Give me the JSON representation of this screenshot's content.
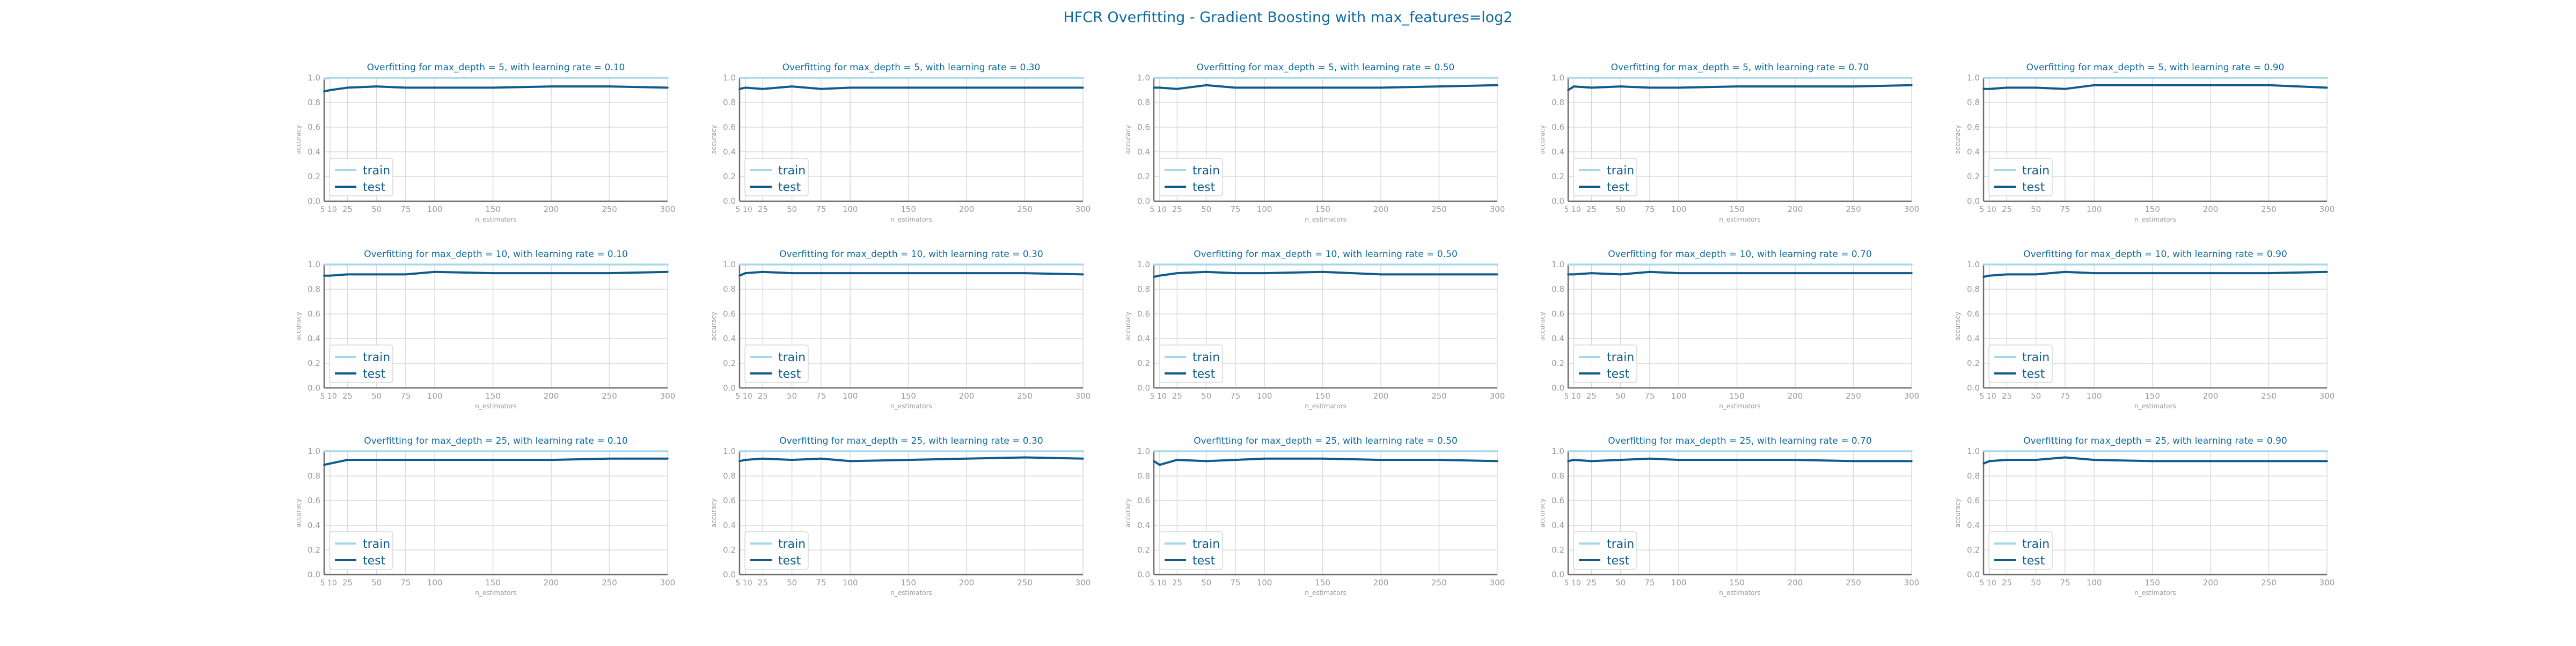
{
  "figure": {
    "title": "HFCR Overfitting - Gradient Boosting with max_features=log2",
    "colors": {
      "train": "#a8d8e6",
      "test": "#0f5c8c",
      "title": "#0f6aa0",
      "axis_text": "#9a9a9a",
      "grid": "#dadada",
      "spine": "#6e6e6e"
    }
  },
  "chart_data": [
    {
      "type": "line",
      "title": "Overfitting for max_depth = 5, with learning rate = 0.10",
      "xlabel": "n_estimators",
      "ylabel": "accuracy",
      "ylim": [
        0,
        1
      ],
      "xlim": [
        5,
        300
      ],
      "grid": true,
      "legend": "lower-left",
      "x": [
        5,
        10,
        25,
        50,
        75,
        100,
        150,
        200,
        250,
        300
      ],
      "xticks": [
        "5",
        "10",
        "25",
        "50",
        "75",
        "100",
        "150",
        "200",
        "250",
        "300"
      ],
      "yticks": [
        "0.0",
        "0.2",
        "0.4",
        "0.6",
        "0.8",
        "1.0"
      ],
      "series": [
        {
          "name": "train",
          "values": [
            0.99,
            1.0,
            1.0,
            1.0,
            1.0,
            1.0,
            1.0,
            1.0,
            1.0,
            1.0
          ]
        },
        {
          "name": "test",
          "values": [
            0.89,
            0.9,
            0.92,
            0.93,
            0.92,
            0.92,
            0.92,
            0.93,
            0.93,
            0.92
          ]
        }
      ]
    },
    {
      "type": "line",
      "title": "Overfitting for max_depth = 5, with learning rate = 0.30",
      "xlabel": "n_estimators",
      "ylabel": "accuracy",
      "ylim": [
        0,
        1
      ],
      "xlim": [
        5,
        300
      ],
      "grid": true,
      "legend": "lower-left",
      "x": [
        5,
        10,
        25,
        50,
        75,
        100,
        150,
        200,
        250,
        300
      ],
      "xticks": [
        "5",
        "10",
        "25",
        "50",
        "75",
        "100",
        "150",
        "200",
        "250",
        "300"
      ],
      "yticks": [
        "0.0",
        "0.2",
        "0.4",
        "0.6",
        "0.8",
        "1.0"
      ],
      "series": [
        {
          "name": "train",
          "values": [
            1.0,
            1.0,
            1.0,
            1.0,
            1.0,
            1.0,
            1.0,
            1.0,
            1.0,
            1.0
          ]
        },
        {
          "name": "test",
          "values": [
            0.91,
            0.92,
            0.91,
            0.93,
            0.91,
            0.92,
            0.92,
            0.92,
            0.92,
            0.92
          ]
        }
      ]
    },
    {
      "type": "line",
      "title": "Overfitting for max_depth = 5, with learning rate = 0.50",
      "xlabel": "n_estimators",
      "ylabel": "accuracy",
      "ylim": [
        0,
        1
      ],
      "xlim": [
        5,
        300
      ],
      "grid": true,
      "legend": "lower-left",
      "x": [
        5,
        10,
        25,
        50,
        75,
        100,
        150,
        200,
        250,
        300
      ],
      "xticks": [
        "5",
        "10",
        "25",
        "50",
        "75",
        "100",
        "150",
        "200",
        "250",
        "300"
      ],
      "yticks": [
        "0.0",
        "0.2",
        "0.4",
        "0.6",
        "0.8",
        "1.0"
      ],
      "series": [
        {
          "name": "train",
          "values": [
            1.0,
            1.0,
            1.0,
            1.0,
            1.0,
            1.0,
            1.0,
            1.0,
            1.0,
            1.0
          ]
        },
        {
          "name": "test",
          "values": [
            0.92,
            0.92,
            0.91,
            0.94,
            0.92,
            0.92,
            0.92,
            0.92,
            0.93,
            0.94
          ]
        }
      ]
    },
    {
      "type": "line",
      "title": "Overfitting for max_depth = 5, with learning rate = 0.70",
      "xlabel": "n_estimators",
      "ylabel": "accuracy",
      "ylim": [
        0,
        1
      ],
      "xlim": [
        5,
        300
      ],
      "grid": true,
      "legend": "lower-left",
      "x": [
        5,
        10,
        25,
        50,
        75,
        100,
        150,
        200,
        250,
        300
      ],
      "xticks": [
        "5",
        "10",
        "25",
        "50",
        "75",
        "100",
        "150",
        "200",
        "250",
        "300"
      ],
      "yticks": [
        "0.0",
        "0.2",
        "0.4",
        "0.6",
        "0.8",
        "1.0"
      ],
      "series": [
        {
          "name": "train",
          "values": [
            1.0,
            1.0,
            1.0,
            1.0,
            1.0,
            1.0,
            1.0,
            1.0,
            1.0,
            1.0
          ]
        },
        {
          "name": "test",
          "values": [
            0.9,
            0.93,
            0.92,
            0.93,
            0.92,
            0.92,
            0.93,
            0.93,
            0.93,
            0.94
          ]
        }
      ]
    },
    {
      "type": "line",
      "title": "Overfitting for max_depth = 5, with learning rate = 0.90",
      "xlabel": "n_estimators",
      "ylabel": "accuracy",
      "ylim": [
        0,
        1
      ],
      "xlim": [
        5,
        300
      ],
      "grid": true,
      "legend": "lower-left",
      "x": [
        5,
        10,
        25,
        50,
        75,
        100,
        150,
        200,
        250,
        300
      ],
      "xticks": [
        "5",
        "10",
        "25",
        "50",
        "75",
        "100",
        "150",
        "200",
        "250",
        "300"
      ],
      "yticks": [
        "0.0",
        "0.2",
        "0.4",
        "0.6",
        "0.8",
        "1.0"
      ],
      "series": [
        {
          "name": "train",
          "values": [
            1.0,
            1.0,
            1.0,
            1.0,
            1.0,
            1.0,
            1.0,
            1.0,
            1.0,
            1.0
          ]
        },
        {
          "name": "test",
          "values": [
            0.91,
            0.91,
            0.92,
            0.92,
            0.91,
            0.94,
            0.94,
            0.94,
            0.94,
            0.92
          ]
        }
      ]
    },
    {
      "type": "line",
      "title": "Overfitting for max_depth = 10, with learning rate = 0.10",
      "xlabel": "n_estimators",
      "ylabel": "accuracy",
      "ylim": [
        0,
        1
      ],
      "xlim": [
        5,
        300
      ],
      "grid": true,
      "legend": "lower-left",
      "x": [
        5,
        10,
        25,
        50,
        75,
        100,
        150,
        200,
        250,
        300
      ],
      "xticks": [
        "5",
        "10",
        "25",
        "50",
        "75",
        "100",
        "150",
        "200",
        "250",
        "300"
      ],
      "yticks": [
        "0.0",
        "0.2",
        "0.4",
        "0.6",
        "0.8",
        "1.0"
      ],
      "series": [
        {
          "name": "train",
          "values": [
            1.0,
            1.0,
            1.0,
            1.0,
            1.0,
            1.0,
            1.0,
            1.0,
            1.0,
            1.0
          ]
        },
        {
          "name": "test",
          "values": [
            0.91,
            0.91,
            0.92,
            0.92,
            0.92,
            0.94,
            0.93,
            0.93,
            0.93,
            0.94
          ]
        }
      ]
    },
    {
      "type": "line",
      "title": "Overfitting for max_depth = 10, with learning rate = 0.30",
      "xlabel": "n_estimators",
      "ylabel": "accuracy",
      "ylim": [
        0,
        1
      ],
      "xlim": [
        5,
        300
      ],
      "grid": true,
      "legend": "lower-left",
      "x": [
        5,
        10,
        25,
        50,
        75,
        100,
        150,
        200,
        250,
        300
      ],
      "xticks": [
        "5",
        "10",
        "25",
        "50",
        "75",
        "100",
        "150",
        "200",
        "250",
        "300"
      ],
      "yticks": [
        "0.0",
        "0.2",
        "0.4",
        "0.6",
        "0.8",
        "1.0"
      ],
      "series": [
        {
          "name": "train",
          "values": [
            1.0,
            1.0,
            1.0,
            1.0,
            1.0,
            1.0,
            1.0,
            1.0,
            1.0,
            1.0
          ]
        },
        {
          "name": "test",
          "values": [
            0.91,
            0.93,
            0.94,
            0.93,
            0.93,
            0.93,
            0.93,
            0.93,
            0.93,
            0.92
          ]
        }
      ]
    },
    {
      "type": "line",
      "title": "Overfitting for max_depth = 10, with learning rate = 0.50",
      "xlabel": "n_estimators",
      "ylabel": "accuracy",
      "ylim": [
        0,
        1
      ],
      "xlim": [
        5,
        300
      ],
      "grid": true,
      "legend": "lower-left",
      "x": [
        5,
        10,
        25,
        50,
        75,
        100,
        150,
        200,
        250,
        300
      ],
      "xticks": [
        "5",
        "10",
        "25",
        "50",
        "75",
        "100",
        "150",
        "200",
        "250",
        "300"
      ],
      "yticks": [
        "0.0",
        "0.2",
        "0.4",
        "0.6",
        "0.8",
        "1.0"
      ],
      "series": [
        {
          "name": "train",
          "values": [
            1.0,
            1.0,
            1.0,
            1.0,
            1.0,
            1.0,
            1.0,
            1.0,
            1.0,
            1.0
          ]
        },
        {
          "name": "test",
          "values": [
            0.9,
            0.91,
            0.93,
            0.94,
            0.93,
            0.93,
            0.94,
            0.92,
            0.92,
            0.92
          ]
        }
      ]
    },
    {
      "type": "line",
      "title": "Overfitting for max_depth = 10, with learning rate = 0.70",
      "xlabel": "n_estimators",
      "ylabel": "accuracy",
      "ylim": [
        0,
        1
      ],
      "xlim": [
        5,
        300
      ],
      "grid": true,
      "legend": "lower-left",
      "x": [
        5,
        10,
        25,
        50,
        75,
        100,
        150,
        200,
        250,
        300
      ],
      "xticks": [
        "5",
        "10",
        "25",
        "50",
        "75",
        "100",
        "150",
        "200",
        "250",
        "300"
      ],
      "yticks": [
        "0.0",
        "0.2",
        "0.4",
        "0.6",
        "0.8",
        "1.0"
      ],
      "series": [
        {
          "name": "train",
          "values": [
            1.0,
            1.0,
            1.0,
            1.0,
            1.0,
            1.0,
            1.0,
            1.0,
            1.0,
            1.0
          ]
        },
        {
          "name": "test",
          "values": [
            0.92,
            0.92,
            0.93,
            0.92,
            0.94,
            0.93,
            0.93,
            0.93,
            0.93,
            0.93
          ]
        }
      ]
    },
    {
      "type": "line",
      "title": "Overfitting for max_depth = 10, with learning rate = 0.90",
      "xlabel": "n_estimators",
      "ylabel": "accuracy",
      "ylim": [
        0,
        1
      ],
      "xlim": [
        5,
        300
      ],
      "grid": true,
      "legend": "lower-left",
      "x": [
        5,
        10,
        25,
        50,
        75,
        100,
        150,
        200,
        250,
        300
      ],
      "xticks": [
        "5",
        "10",
        "25",
        "50",
        "75",
        "100",
        "150",
        "200",
        "250",
        "300"
      ],
      "yticks": [
        "0.0",
        "0.2",
        "0.4",
        "0.6",
        "0.8",
        "1.0"
      ],
      "series": [
        {
          "name": "train",
          "values": [
            1.0,
            1.0,
            1.0,
            1.0,
            1.0,
            1.0,
            1.0,
            1.0,
            1.0,
            1.0
          ]
        },
        {
          "name": "test",
          "values": [
            0.9,
            0.91,
            0.92,
            0.92,
            0.94,
            0.93,
            0.93,
            0.93,
            0.93,
            0.94
          ]
        }
      ]
    },
    {
      "type": "line",
      "title": "Overfitting for max_depth = 25, with learning rate = 0.10",
      "xlabel": "n_estimators",
      "ylabel": "accuracy",
      "ylim": [
        0,
        1
      ],
      "xlim": [
        5,
        300
      ],
      "grid": true,
      "legend": "lower-left",
      "x": [
        5,
        10,
        25,
        50,
        75,
        100,
        150,
        200,
        250,
        300
      ],
      "xticks": [
        "5",
        "10",
        "25",
        "50",
        "75",
        "100",
        "150",
        "200",
        "250",
        "300"
      ],
      "yticks": [
        "0.0",
        "0.2",
        "0.4",
        "0.6",
        "0.8",
        "1.0"
      ],
      "series": [
        {
          "name": "train",
          "values": [
            1.0,
            1.0,
            1.0,
            1.0,
            1.0,
            1.0,
            1.0,
            1.0,
            1.0,
            1.0
          ]
        },
        {
          "name": "test",
          "values": [
            0.89,
            0.9,
            0.93,
            0.93,
            0.93,
            0.93,
            0.93,
            0.93,
            0.94,
            0.94
          ]
        }
      ]
    },
    {
      "type": "line",
      "title": "Overfitting for max_depth = 25, with learning rate = 0.30",
      "xlabel": "n_estimators",
      "ylabel": "accuracy",
      "ylim": [
        0,
        1
      ],
      "xlim": [
        5,
        300
      ],
      "grid": true,
      "legend": "lower-left",
      "x": [
        5,
        10,
        25,
        50,
        75,
        100,
        150,
        200,
        250,
        300
      ],
      "xticks": [
        "5",
        "10",
        "25",
        "50",
        "75",
        "100",
        "150",
        "200",
        "250",
        "300"
      ],
      "yticks": [
        "0.0",
        "0.2",
        "0.4",
        "0.6",
        "0.8",
        "1.0"
      ],
      "series": [
        {
          "name": "train",
          "values": [
            1.0,
            1.0,
            1.0,
            1.0,
            1.0,
            1.0,
            1.0,
            1.0,
            1.0,
            1.0
          ]
        },
        {
          "name": "test",
          "values": [
            0.92,
            0.93,
            0.94,
            0.93,
            0.94,
            0.92,
            0.93,
            0.94,
            0.95,
            0.94
          ]
        }
      ]
    },
    {
      "type": "line",
      "title": "Overfitting for max_depth = 25, with learning rate = 0.50",
      "xlabel": "n_estimators",
      "ylabel": "accuracy",
      "ylim": [
        0,
        1
      ],
      "xlim": [
        5,
        300
      ],
      "grid": true,
      "legend": "lower-left",
      "x": [
        5,
        10,
        25,
        50,
        75,
        100,
        150,
        200,
        250,
        300
      ],
      "xticks": [
        "5",
        "10",
        "25",
        "50",
        "75",
        "100",
        "150",
        "200",
        "250",
        "300"
      ],
      "yticks": [
        "0.0",
        "0.2",
        "0.4",
        "0.6",
        "0.8",
        "1.0"
      ],
      "series": [
        {
          "name": "train",
          "values": [
            1.0,
            1.0,
            1.0,
            1.0,
            1.0,
            1.0,
            1.0,
            1.0,
            1.0,
            1.0
          ]
        },
        {
          "name": "test",
          "values": [
            0.92,
            0.89,
            0.93,
            0.92,
            0.93,
            0.94,
            0.94,
            0.93,
            0.93,
            0.92
          ]
        }
      ]
    },
    {
      "type": "line",
      "title": "Overfitting for max_depth = 25, with learning rate = 0.70",
      "xlabel": "n_estimators",
      "ylabel": "accuracy",
      "ylim": [
        0,
        1
      ],
      "xlim": [
        5,
        300
      ],
      "grid": true,
      "legend": "lower-left",
      "x": [
        5,
        10,
        25,
        50,
        75,
        100,
        150,
        200,
        250,
        300
      ],
      "xticks": [
        "5",
        "10",
        "25",
        "50",
        "75",
        "100",
        "150",
        "200",
        "250",
        "300"
      ],
      "yticks": [
        "0.0",
        "0.2",
        "0.4",
        "0.6",
        "0.8",
        "1.0"
      ],
      "series": [
        {
          "name": "train",
          "values": [
            1.0,
            1.0,
            1.0,
            1.0,
            1.0,
            1.0,
            1.0,
            1.0,
            1.0,
            1.0
          ]
        },
        {
          "name": "test",
          "values": [
            0.92,
            0.93,
            0.92,
            0.93,
            0.94,
            0.93,
            0.93,
            0.93,
            0.92,
            0.92
          ]
        }
      ]
    },
    {
      "type": "line",
      "title": "Overfitting for max_depth = 25, with learning rate = 0.90",
      "xlabel": "n_estimators",
      "ylabel": "accuracy",
      "ylim": [
        0,
        1
      ],
      "xlim": [
        5,
        300
      ],
      "grid": true,
      "legend": "lower-left",
      "x": [
        5,
        10,
        25,
        50,
        75,
        100,
        150,
        200,
        250,
        300
      ],
      "xticks": [
        "5",
        "10",
        "25",
        "50",
        "75",
        "100",
        "150",
        "200",
        "250",
        "300"
      ],
      "yticks": [
        "0.0",
        "0.2",
        "0.4",
        "0.6",
        "0.8",
        "1.0"
      ],
      "series": [
        {
          "name": "train",
          "values": [
            1.0,
            1.0,
            1.0,
            1.0,
            1.0,
            1.0,
            1.0,
            1.0,
            1.0,
            1.0
          ]
        },
        {
          "name": "test",
          "values": [
            0.9,
            0.92,
            0.93,
            0.93,
            0.95,
            0.93,
            0.92,
            0.92,
            0.92,
            0.92
          ]
        }
      ]
    }
  ]
}
